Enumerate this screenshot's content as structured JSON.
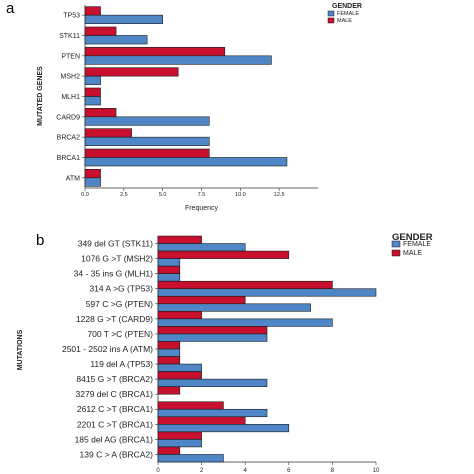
{
  "panel_a_label": "a",
  "panel_b_label": "b",
  "chart_data": [
    {
      "type": "bar",
      "orientation": "horizontal",
      "categories": [
        "TP53",
        "STK11",
        "PTEN",
        "MSH2",
        "MLH1",
        "CARD9",
        "BRCA2",
        "BRCA1",
        "ATM"
      ],
      "series": [
        {
          "name": "MALE",
          "values": [
            1,
            2,
            9,
            6,
            1,
            2,
            3,
            8,
            1
          ]
        },
        {
          "name": "FEMALE",
          "values": [
            5,
            4,
            12,
            1,
            1,
            8,
            8,
            13,
            1
          ]
        }
      ],
      "xlabel": "Frequency",
      "ylabel": "MUTATED GENES",
      "xlim": [
        0,
        15
      ],
      "xticks": [
        "0.0",
        "2.5",
        "5.0",
        "7.5",
        "10.0",
        "12.5"
      ],
      "legend_title": "GENDER",
      "legend_placement": "top-right",
      "grid": false,
      "colors": {
        "MALE": "#c8102e",
        "FEMALE": "#4f86c6"
      }
    },
    {
      "type": "bar",
      "orientation": "horizontal",
      "categories": [
        "349 del GT (STK11)",
        "1076 G >T (MSH2)",
        "34 - 35 ins G (MLH1)",
        "314 A >G (TP53)",
        "597 C >G (PTEN)",
        "1228 G >T (CARD9)",
        "700 T >C (PTEN)",
        "2501 - 2502 ins A (ATM)",
        "119 del A (TP53)",
        "8415 G >T (BRCA2)",
        "3279 del C (BRCA1)",
        "2612 C >T (BRCA1)",
        "2201 C >T (BRCA1)",
        "185 del AG (BRCA1)",
        "139 C > A (BRCA2)"
      ],
      "series": [
        {
          "name": "MALE",
          "values": [
            2,
            6,
            1,
            8,
            4,
            2,
            5,
            1,
            1,
            2,
            1,
            3,
            4,
            2,
            1
          ]
        },
        {
          "name": "FEMALE",
          "values": [
            4,
            1,
            1,
            10,
            7,
            8,
            5,
            1,
            2,
            5,
            0,
            5,
            6,
            2,
            3
          ]
        }
      ],
      "ylabel": "MUTATIONS",
      "xlim": [
        0,
        10
      ],
      "xticks": [
        "0",
        "2",
        "4",
        "6",
        "8",
        "10"
      ],
      "legend_title": "GENDER",
      "legend_placement": "top-right",
      "grid": false,
      "colors": {
        "MALE": "#c8102e",
        "FEMALE": "#4f86c6"
      }
    }
  ]
}
